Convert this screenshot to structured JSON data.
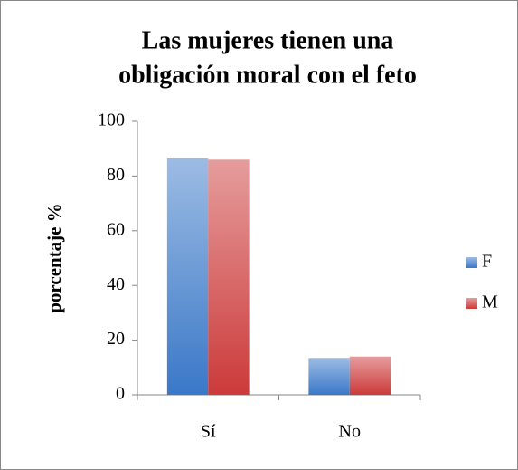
{
  "chart_data": {
    "type": "bar",
    "title": [
      "Las mujeres tienen una",
      "obligación moral con el feto"
    ],
    "y_label": "porcentaje %",
    "categories": [
      "Sí",
      "No"
    ],
    "series": [
      {
        "name": "F",
        "color": "#3a78c8",
        "values": [
          86.5,
          13.5
        ]
      },
      {
        "name": "M",
        "color": "#cc3a3a",
        "values": [
          86,
          14
        ]
      }
    ],
    "ylim": [
      0,
      100
    ],
    "yticks": [
      0,
      20,
      40,
      60,
      80,
      100
    ],
    "grid": false,
    "legend": "right"
  }
}
